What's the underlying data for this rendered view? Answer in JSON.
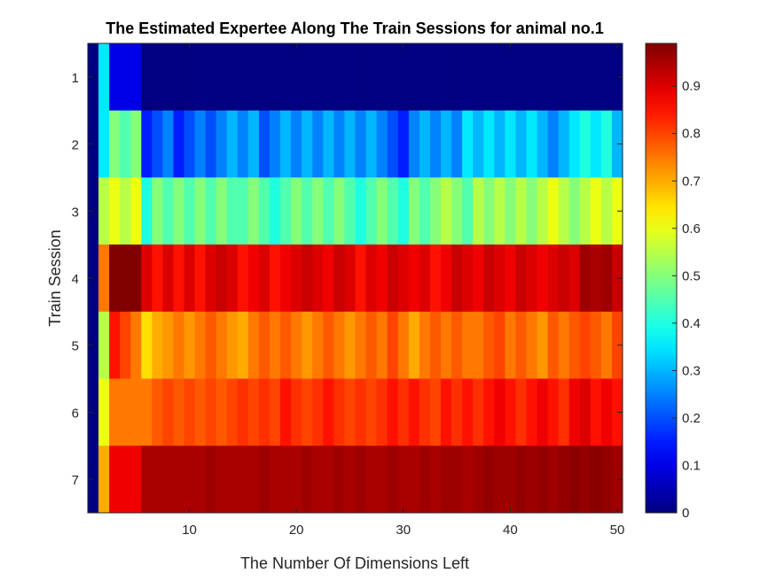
{
  "chart_data": {
    "type": "heatmap",
    "title": "The Estimated Expertee Along The Train Sessions for animal no.1",
    "xlabel": "The Number Of Dimensions Left",
    "ylabel": "Train Session",
    "x_range": [
      1,
      50
    ],
    "x_ticks": [
      "10",
      "20",
      "30",
      "40",
      "50"
    ],
    "y_categories": [
      "1",
      "2",
      "3",
      "4",
      "5",
      "6",
      "7"
    ],
    "colormap": "jet",
    "colorbar": {
      "range": [
        0,
        0.99
      ],
      "ticks": [
        "0",
        "0.1",
        "0.2",
        "0.3",
        "0.4",
        "0.5",
        "0.6",
        "0.7",
        "0.8",
        "0.9"
      ]
    },
    "grid": false,
    "rows": [
      {
        "session": "1",
        "values": [
          0.0,
          0.35,
          0.1,
          0.1,
          0.1,
          0.0,
          0.0,
          0.0,
          0.0,
          0.0,
          0.0,
          0.0,
          0.0,
          0.0,
          0.0,
          0.0,
          0.0,
          0.0,
          0.0,
          0.0,
          0.0,
          0.0,
          0.0,
          0.0,
          0.0,
          0.0,
          0.0,
          0.0,
          0.0,
          0.0,
          0.0,
          0.0,
          0.0,
          0.0,
          0.0,
          0.0,
          0.0,
          0.0,
          0.0,
          0.0,
          0.0,
          0.0,
          0.0,
          0.0,
          0.0,
          0.0,
          0.0,
          0.0,
          0.0,
          0.0
        ]
      },
      {
        "session": "2",
        "values": [
          0.0,
          0.35,
          0.5,
          0.45,
          0.5,
          0.15,
          0.2,
          0.25,
          0.15,
          0.2,
          0.25,
          0.2,
          0.25,
          0.3,
          0.25,
          0.3,
          0.2,
          0.25,
          0.3,
          0.25,
          0.3,
          0.25,
          0.3,
          0.25,
          0.3,
          0.25,
          0.3,
          0.25,
          0.2,
          0.15,
          0.25,
          0.3,
          0.25,
          0.3,
          0.25,
          0.35,
          0.3,
          0.35,
          0.3,
          0.35,
          0.3,
          0.35,
          0.3,
          0.25,
          0.3,
          0.35,
          0.4,
          0.35,
          0.4,
          0.3
        ]
      },
      {
        "session": "3",
        "values": [
          0.0,
          0.55,
          0.6,
          0.55,
          0.6,
          0.4,
          0.5,
          0.45,
          0.5,
          0.45,
          0.5,
          0.45,
          0.5,
          0.45,
          0.45,
          0.5,
          0.45,
          0.4,
          0.45,
          0.5,
          0.45,
          0.5,
          0.45,
          0.5,
          0.45,
          0.4,
          0.45,
          0.5,
          0.45,
          0.4,
          0.5,
          0.45,
          0.5,
          0.55,
          0.5,
          0.45,
          0.55,
          0.5,
          0.55,
          0.5,
          0.55,
          0.5,
          0.55,
          0.6,
          0.55,
          0.5,
          0.55,
          0.6,
          0.55,
          0.6
        ]
      },
      {
        "session": "4",
        "values": [
          0.0,
          0.75,
          0.99,
          0.99,
          0.99,
          0.9,
          0.85,
          0.9,
          0.85,
          0.9,
          0.85,
          0.9,
          0.92,
          0.9,
          0.85,
          0.88,
          0.9,
          0.85,
          0.88,
          0.9,
          0.92,
          0.9,
          0.88,
          0.92,
          0.9,
          0.85,
          0.9,
          0.88,
          0.92,
          0.9,
          0.88,
          0.9,
          0.85,
          0.88,
          0.92,
          0.9,
          0.88,
          0.92,
          0.9,
          0.88,
          0.92,
          0.9,
          0.88,
          0.9,
          0.92,
          0.9,
          0.96,
          0.95,
          0.96,
          0.92
        ]
      },
      {
        "session": "5",
        "values": [
          0.0,
          0.55,
          0.85,
          0.8,
          0.75,
          0.65,
          0.7,
          0.72,
          0.75,
          0.72,
          0.75,
          0.78,
          0.75,
          0.72,
          0.7,
          0.75,
          0.78,
          0.75,
          0.78,
          0.75,
          0.72,
          0.75,
          0.78,
          0.75,
          0.72,
          0.75,
          0.78,
          0.75,
          0.8,
          0.75,
          0.7,
          0.75,
          0.78,
          0.75,
          0.78,
          0.75,
          0.75,
          0.78,
          0.8,
          0.75,
          0.78,
          0.75,
          0.72,
          0.78,
          0.75,
          0.78,
          0.8,
          0.78,
          0.75,
          0.8
        ]
      },
      {
        "session": "6",
        "values": [
          0.0,
          0.6,
          0.75,
          0.75,
          0.75,
          0.75,
          0.78,
          0.8,
          0.78,
          0.8,
          0.78,
          0.8,
          0.78,
          0.8,
          0.82,
          0.8,
          0.82,
          0.8,
          0.85,
          0.82,
          0.8,
          0.82,
          0.85,
          0.82,
          0.8,
          0.82,
          0.8,
          0.82,
          0.85,
          0.82,
          0.85,
          0.82,
          0.8,
          0.85,
          0.82,
          0.85,
          0.82,
          0.85,
          0.88,
          0.85,
          0.82,
          0.85,
          0.88,
          0.85,
          0.82,
          0.88,
          0.9,
          0.85,
          0.88,
          0.85
        ]
      },
      {
        "session": "7",
        "values": [
          0.0,
          0.7,
          0.88,
          0.88,
          0.88,
          0.95,
          0.95,
          0.95,
          0.95,
          0.95,
          0.95,
          0.96,
          0.95,
          0.95,
          0.95,
          0.95,
          0.96,
          0.95,
          0.95,
          0.95,
          0.96,
          0.95,
          0.95,
          0.96,
          0.95,
          0.96,
          0.95,
          0.95,
          0.96,
          0.95,
          0.95,
          0.96,
          0.95,
          0.96,
          0.96,
          0.95,
          0.96,
          0.97,
          0.96,
          0.96,
          0.97,
          0.96,
          0.97,
          0.96,
          0.97,
          0.98,
          0.97,
          0.98,
          0.97,
          0.96
        ]
      }
    ]
  }
}
